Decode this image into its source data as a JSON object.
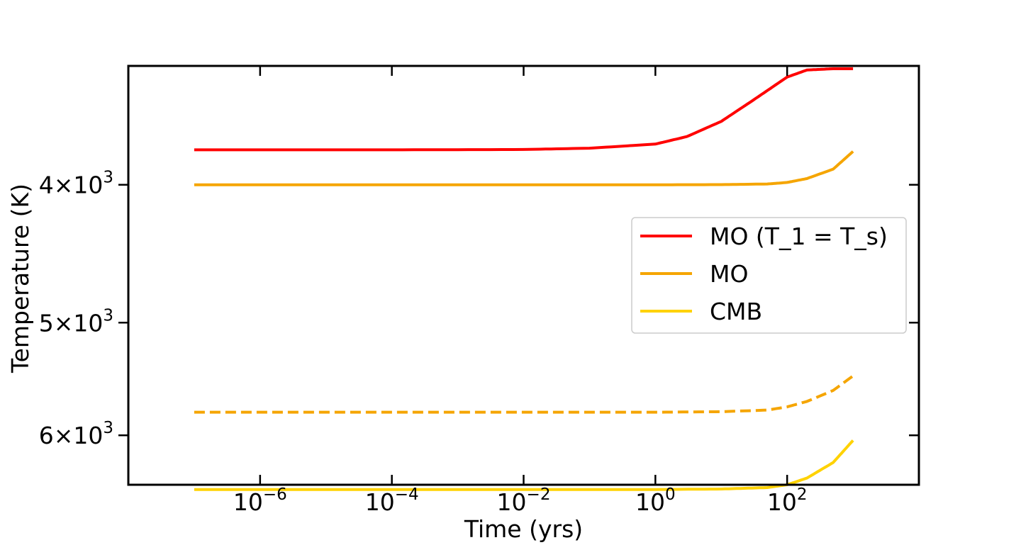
{
  "chart_data": {
    "type": "line",
    "xlabel": "Time (yrs)",
    "ylabel": "Temperature (K)",
    "x_scale": "log",
    "y_scale": "log",
    "y_inverted": true,
    "xlim": [
      1e-08,
      10000.0
    ],
    "ylim": [
      3300,
      6500
    ],
    "x_ticks": [
      {
        "value": 1e-06,
        "base": "10",
        "exp": "−6"
      },
      {
        "value": 0.0001,
        "base": "10",
        "exp": "−4"
      },
      {
        "value": 0.01,
        "base": "10",
        "exp": "−2"
      },
      {
        "value": 1,
        "base": "10",
        "exp": "0"
      },
      {
        "value": 100,
        "base": "10",
        "exp": "2"
      }
    ],
    "y_ticks": [
      {
        "value": 4000,
        "mant": "4",
        "times": "×",
        "base": "10",
        "exp": "3"
      },
      {
        "value": 5000,
        "mant": "5",
        "times": "×",
        "base": "10",
        "exp": "3"
      },
      {
        "value": 6000,
        "mant": "6",
        "times": "×",
        "base": "10",
        "exp": "3"
      }
    ],
    "legend": {
      "placement": "center-right"
    },
    "series": [
      {
        "name": "MO (T_1 = T_s)",
        "color": "#ff0000",
        "style": "solid",
        "in_legend": true,
        "points": [
          [
            1e-07,
            3780
          ],
          [
            0.0001,
            3780
          ],
          [
            0.01,
            3778
          ],
          [
            0.1,
            3770
          ],
          [
            1,
            3745
          ],
          [
            3,
            3700
          ],
          [
            10,
            3610
          ],
          [
            30,
            3490
          ],
          [
            100,
            3360
          ],
          [
            200,
            3322
          ],
          [
            500,
            3315
          ],
          [
            1000,
            3315
          ]
        ]
      },
      {
        "name": "MO",
        "color": "#f5a500",
        "style": "solid",
        "in_legend": true,
        "points": [
          [
            1e-07,
            4000
          ],
          [
            1,
            4000
          ],
          [
            10,
            3999
          ],
          [
            50,
            3995
          ],
          [
            100,
            3985
          ],
          [
            200,
            3960
          ],
          [
            500,
            3900
          ],
          [
            1000,
            3790
          ]
        ]
      },
      {
        "name": "CMB",
        "color": "#ffd200",
        "style": "solid",
        "in_legend": true,
        "points": [
          [
            1e-07,
            6550
          ],
          [
            1,
            6550
          ],
          [
            10,
            6545
          ],
          [
            50,
            6530
          ],
          [
            100,
            6500
          ],
          [
            200,
            6430
          ],
          [
            500,
            6270
          ],
          [
            1000,
            6050
          ]
        ]
      },
      {
        "name": "",
        "color": "#f5a500",
        "style": "dashed",
        "in_legend": false,
        "points": [
          [
            1e-07,
            5780
          ],
          [
            1,
            5780
          ],
          [
            10,
            5775
          ],
          [
            50,
            5760
          ],
          [
            100,
            5730
          ],
          [
            200,
            5680
          ],
          [
            500,
            5580
          ],
          [
            1000,
            5450
          ]
        ]
      }
    ]
  },
  "colors": {
    "axes": "#000000",
    "legend_border": "#cccccc",
    "background": "#ffffff"
  }
}
